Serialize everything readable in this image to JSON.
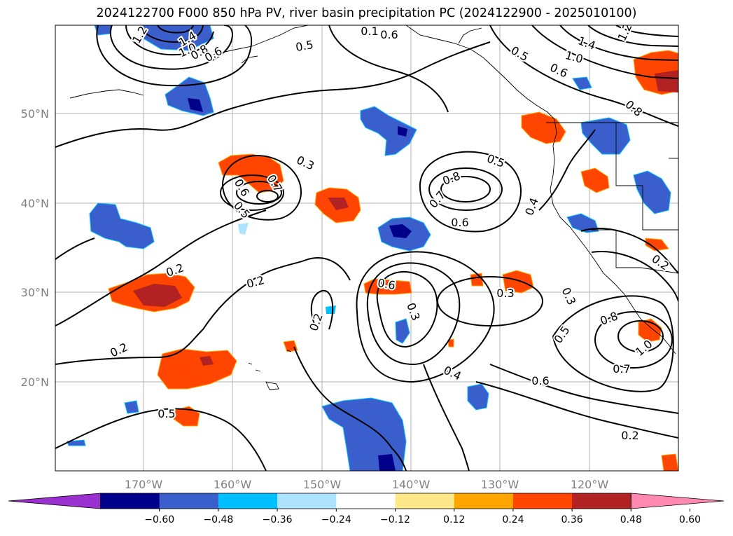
{
  "title": "2024122700 F000 850 hPa PV, river basin precipitation PC (2024122900 - 2025010100)",
  "map": {
    "lat_labels": [
      "50°N",
      "40°N",
      "30°N",
      "20°N"
    ],
    "lon_labels": [
      "170°W",
      "160°W",
      "150°W",
      "140°W",
      "130°W",
      "120°W"
    ],
    "contour_labels": [
      "1.4",
      "1.2",
      "1.0",
      "0.8",
      "0.6",
      "0.5",
      "0.1",
      "0.6",
      "1.4",
      "1.0",
      "1.2",
      "0.5",
      "0.6",
      "0.8",
      "0.3",
      "0.6",
      "0.5",
      "0.7",
      "0.5",
      "0.8",
      "0.7",
      "0.6",
      "0.4",
      "0.3",
      "0.2",
      "0.2",
      "0.2",
      "0.2",
      "0.5",
      "0.6",
      "0.3",
      "0.3",
      "0.5",
      "0.8",
      "1.0",
      "0.7",
      "0.6",
      "0.4",
      "0.2",
      "0.2"
    ]
  },
  "colorbar": {
    "ticks": [
      "−0.60",
      "−0.48",
      "−0.36",
      "−0.24",
      "−0.12",
      "0.12",
      "0.24",
      "0.36",
      "0.48",
      "0.60"
    ],
    "colors": [
      "#9b30d0",
      "#00008b",
      "#3a5fcd",
      "#00bfff",
      "#aee3ff",
      "#ffffff",
      "#ffe88a",
      "#ffa500",
      "#ff4500",
      "#b22222",
      "#ff89b0"
    ]
  }
}
